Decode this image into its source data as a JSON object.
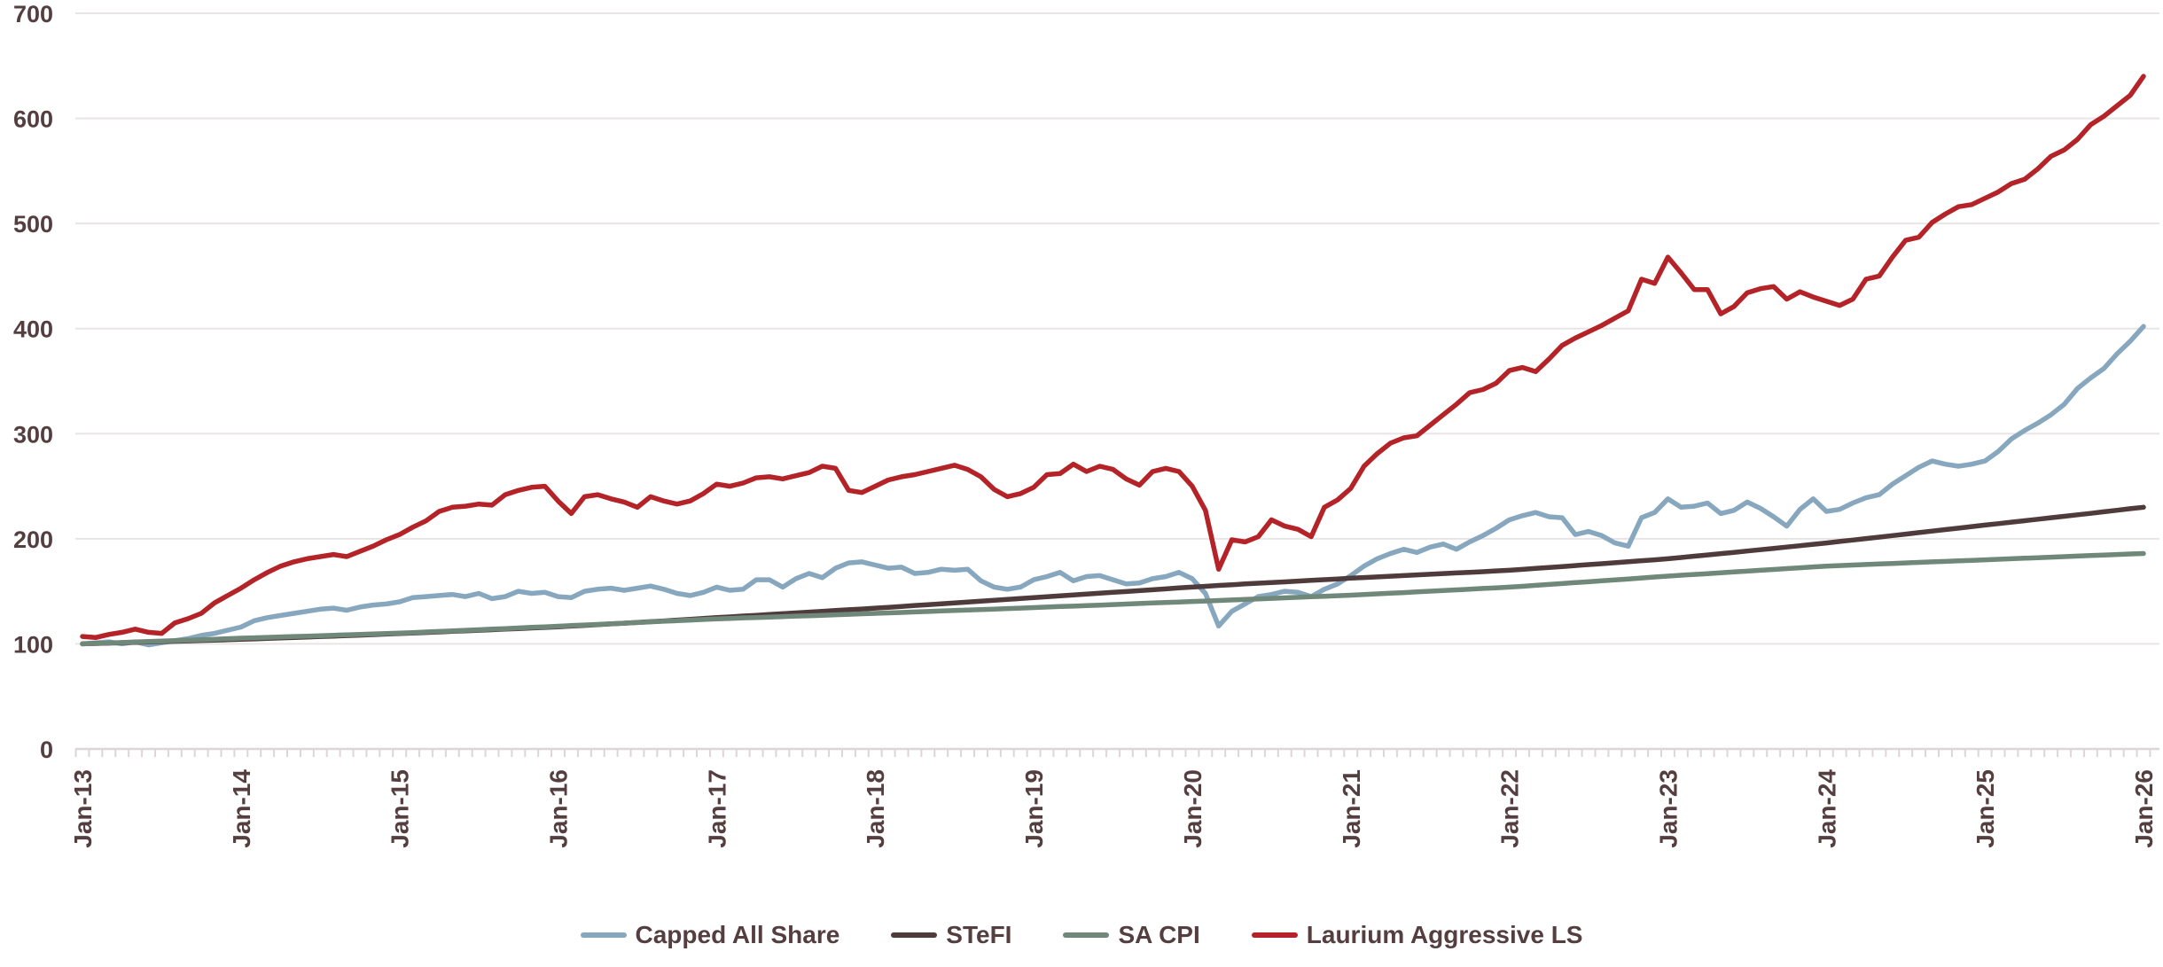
{
  "chart_data": {
    "type": "line",
    "title": "",
    "xlabel": "",
    "ylabel": "",
    "x_unit": "month",
    "x_tick_labels": [
      "Jan-13",
      "Jan-14",
      "Jan-15",
      "Jan-16",
      "Jan-17",
      "Jan-18",
      "Jan-19",
      "Jan-20",
      "Jan-21",
      "Jan-22",
      "Jan-23",
      "Jan-24",
      "Jan-25",
      "Jan-26"
    ],
    "months_between_ticks": 12,
    "y_axis": {
      "min": 0,
      "max": 700,
      "step": 100
    },
    "grid": "horizontal",
    "legend_position": "bottom",
    "axis_text_color": "#543e3f",
    "gridline_color": "#e9e5e5",
    "series": [
      {
        "name": "Capped All Share",
        "slug": "capped-all-share",
        "color": "#86a7bd",
        "values": [
          100,
          101,
          102,
          100,
          102,
          99,
          101,
          103,
          105,
          108,
          110,
          113,
          116,
          122,
          125,
          127,
          129,
          131,
          133,
          134,
          132,
          135,
          137,
          138,
          140,
          144,
          145,
          146,
          147,
          145,
          148,
          143,
          145,
          150,
          148,
          149,
          145,
          144,
          150,
          152,
          153,
          151,
          153,
          155,
          152,
          148,
          146,
          149,
          154,
          151,
          152,
          161,
          161,
          154,
          162,
          167,
          163,
          172,
          177,
          178,
          175,
          172,
          173,
          167,
          168,
          171,
          170,
          171,
          160,
          154,
          152,
          154,
          161,
          164,
          168,
          160,
          164,
          165,
          161,
          157,
          158,
          162,
          164,
          168,
          162,
          148,
          117,
          131,
          138,
          145,
          147,
          150,
          149,
          145,
          152,
          157,
          165,
          174,
          181,
          186,
          190,
          187,
          192,
          195,
          190,
          197,
          203,
          210,
          218,
          222,
          225,
          221,
          220,
          204,
          207,
          203,
          196,
          193,
          220,
          225,
          238,
          230,
          231,
          234,
          224,
          227,
          235,
          229,
          221,
          212,
          228,
          238,
          226,
          228,
          234,
          239,
          242,
          252,
          260,
          268,
          274,
          271,
          269,
          271,
          274,
          283,
          295,
          303,
          310,
          318,
          328,
          343,
          353,
          362,
          376,
          388,
          402
        ]
      },
      {
        "name": "STeFI",
        "slug": "stefi",
        "color": "#4f3b3b",
        "values": [
          100,
          100.4,
          100.7,
          101.1,
          101.4,
          101.8,
          102.1,
          102.5,
          102.8,
          103.2,
          103.5,
          103.9,
          104.3,
          104.7,
          105.2,
          105.6,
          106.1,
          106.5,
          107,
          107.4,
          107.9,
          108.3,
          108.8,
          109.3,
          109.8,
          110.3,
          110.8,
          111.3,
          111.9,
          112.4,
          112.9,
          113.4,
          114,
          114.5,
          115.1,
          115.6,
          116.2,
          116.9,
          117.6,
          118.3,
          119,
          119.7,
          120.4,
          121.1,
          121.8,
          122.6,
          123.4,
          124.2,
          125,
          125.7,
          126.5,
          127.2,
          128,
          128.7,
          129.5,
          130.2,
          131,
          131.7,
          132.5,
          133.2,
          134,
          134.8,
          135.6,
          136.5,
          137.3,
          138.1,
          139,
          139.8,
          140.6,
          141.5,
          142.3,
          143.2,
          144,
          144.8,
          145.7,
          146.5,
          147.3,
          148.2,
          149,
          149.8,
          150.6,
          151.5,
          152.3,
          153.2,
          154,
          154.8,
          155.6,
          156.3,
          157,
          157.7,
          158.4,
          159,
          159.7,
          160.4,
          161.1,
          161.8,
          162.5,
          163.1,
          163.7,
          164.4,
          165,
          165.6,
          166.2,
          166.9,
          167.5,
          168.1,
          168.7,
          169.4,
          170,
          170.9,
          171.8,
          172.7,
          173.6,
          174.5,
          175.4,
          176.3,
          177.2,
          178.1,
          179.1,
          180,
          181,
          182.2,
          183.4,
          184.6,
          185.9,
          187.1,
          188.3,
          189.6,
          190.8,
          192.1,
          193.4,
          194.7,
          196,
          197.4,
          198.8,
          200.2,
          201.6,
          203,
          204.4,
          205.9,
          207.3,
          208.7,
          210.1,
          211.6,
          213,
          214.4,
          215.8,
          217.2,
          218.6,
          220,
          221.4,
          222.8,
          224.2,
          225.7,
          227.1,
          228.6,
          230
        ]
      },
      {
        "name": "SA CPI",
        "slug": "sa-cpi",
        "color": "#70887a",
        "values": [
          100,
          100.4,
          100.9,
          101.3,
          101.8,
          102.2,
          102.6,
          103.1,
          103.5,
          104,
          104.4,
          104.9,
          105.4,
          105.8,
          106.2,
          106.6,
          107,
          107.4,
          107.8,
          108.2,
          108.6,
          109,
          109.4,
          109.8,
          110.2,
          110.7,
          111.3,
          111.8,
          112.3,
          112.9,
          113.4,
          114,
          114.5,
          115.1,
          115.7,
          116.2,
          116.8,
          117.4,
          118,
          118.5,
          119.1,
          119.7,
          120.3,
          120.9,
          121.5,
          122,
          122.6,
          123.2,
          123.8,
          124.2,
          124.7,
          125.1,
          125.5,
          125.9,
          126.4,
          126.8,
          127.2,
          127.7,
          128.1,
          128.6,
          129,
          129.5,
          129.9,
          130.4,
          130.8,
          131.3,
          131.7,
          132.2,
          132.7,
          133.1,
          133.6,
          134,
          134.5,
          135,
          135.5,
          135.9,
          136.4,
          136.9,
          137.4,
          137.9,
          138.4,
          138.9,
          139.3,
          139.8,
          140.3,
          140.8,
          141.3,
          141.8,
          142.3,
          142.8,
          143.3,
          143.8,
          144.3,
          144.8,
          145.3,
          145.8,
          146.3,
          146.9,
          147.6,
          148.2,
          148.8,
          149.5,
          150.1,
          150.7,
          151.4,
          152,
          152.7,
          153.3,
          154,
          154.8,
          155.7,
          156.5,
          157.4,
          158.3,
          159.1,
          160,
          160.9,
          161.8,
          162.7,
          163.6,
          164.5,
          165.3,
          166.1,
          166.8,
          167.6,
          168.4,
          169.2,
          170,
          170.8,
          171.6,
          172.4,
          173.2,
          174,
          174.5,
          175,
          175.5,
          176,
          176.5,
          177,
          177.5,
          178,
          178.5,
          179,
          179.5,
          180,
          180.5,
          181,
          181.5,
          182,
          182.5,
          183,
          183.5,
          184,
          184.5,
          185,
          185.5,
          186
        ]
      },
      {
        "name": "Laurium Aggressive LS",
        "slug": "laurium-aggressive-ls",
        "color": "#b42327",
        "values": [
          107,
          106,
          109,
          111,
          114,
          111,
          110,
          120,
          124,
          129,
          139,
          146,
          153,
          161,
          168,
          174,
          178,
          181,
          183,
          185,
          183,
          188,
          193,
          199,
          204,
          211,
          217,
          226,
          230,
          231,
          233,
          232,
          242,
          246,
          249,
          250,
          236,
          224,
          240,
          242,
          238,
          235,
          230,
          240,
          236,
          233,
          236,
          243,
          252,
          250,
          253,
          258,
          259,
          257,
          260,
          263,
          269,
          267,
          246,
          244,
          250,
          256,
          259,
          261,
          264,
          267,
          270,
          266,
          259,
          247,
          240,
          243,
          249,
          261,
          262,
          271,
          264,
          269,
          266,
          257,
          251,
          264,
          267,
          264,
          250,
          227,
          171,
          199,
          197,
          202,
          218,
          212,
          209,
          202,
          230,
          237,
          248,
          269,
          281,
          291,
          296,
          298,
          308,
          318,
          328,
          339,
          342,
          348,
          360,
          363,
          359,
          371,
          384,
          391,
          397,
          403,
          410,
          417,
          447,
          443,
          468,
          453,
          437,
          437,
          414,
          421,
          434,
          438,
          440,
          428,
          435,
          430,
          426,
          422,
          428,
          447,
          450,
          468,
          484,
          487,
          501,
          509,
          516,
          518,
          524,
          530,
          538,
          542,
          552,
          564,
          570,
          580,
          594,
          602,
          612,
          622,
          640
        ]
      }
    ]
  }
}
